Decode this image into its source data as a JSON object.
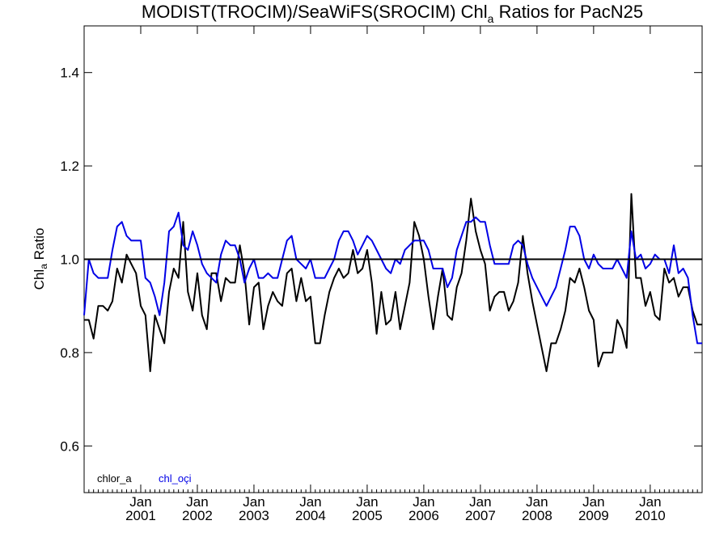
{
  "chart_data": {
    "type": "line",
    "title": "MODIST(TROCIM)/SeaWiFS(SROCIM)  Chl",
    "title_sub": "a",
    "title_tail": " Ratios for PacN25",
    "ylabel": "Chl",
    "ylabel_sub": "a",
    "ylabel_tail": " Ratio",
    "ylim": [
      0.5,
      1.5
    ],
    "xlim": [
      2000.0,
      2010.9167
    ],
    "yticks": [
      0.6,
      0.8,
      1.0,
      1.2,
      1.4
    ],
    "ytick_labels": [
      "0.6",
      "0.8",
      "1.0",
      "1.2",
      "1.4"
    ],
    "xticks": [
      {
        "value": 2001.0,
        "month": "Jan",
        "year": "2001"
      },
      {
        "value": 2002.0,
        "month": "Jan",
        "year": "2002"
      },
      {
        "value": 2003.0,
        "month": "Jan",
        "year": "2003"
      },
      {
        "value": 2004.0,
        "month": "Jan",
        "year": "2004"
      },
      {
        "value": 2005.0,
        "month": "Jan",
        "year": "2005"
      },
      {
        "value": 2006.0,
        "month": "Jan",
        "year": "2006"
      },
      {
        "value": 2007.0,
        "month": "Jan",
        "year": "2007"
      },
      {
        "value": 2008.0,
        "month": "Jan",
        "year": "2008"
      },
      {
        "value": 2009.0,
        "month": "Jan",
        "year": "2009"
      },
      {
        "value": 2010.0,
        "month": "Jan",
        "year": "2010"
      }
    ],
    "reference_line": 1.0,
    "legend_placement": "bottom-left",
    "series": [
      {
        "name": "chlor_a",
        "color": "#000000",
        "x": [
          2000.0,
          2000.083,
          2000.167,
          2000.25,
          2000.333,
          2000.417,
          2000.5,
          2000.583,
          2000.667,
          2000.75,
          2000.833,
          2000.917,
          2001.0,
          2001.083,
          2001.167,
          2001.25,
          2001.333,
          2001.417,
          2001.5,
          2001.583,
          2001.667,
          2001.75,
          2001.833,
          2001.917,
          2002.0,
          2002.083,
          2002.167,
          2002.25,
          2002.333,
          2002.417,
          2002.5,
          2002.583,
          2002.667,
          2002.75,
          2002.833,
          2002.917,
          2003.0,
          2003.083,
          2003.167,
          2003.25,
          2003.333,
          2003.417,
          2003.5,
          2003.583,
          2003.667,
          2003.75,
          2003.833,
          2003.917,
          2004.0,
          2004.083,
          2004.167,
          2004.25,
          2004.333,
          2004.417,
          2004.5,
          2004.583,
          2004.667,
          2004.75,
          2004.833,
          2004.917,
          2005.0,
          2005.083,
          2005.167,
          2005.25,
          2005.333,
          2005.417,
          2005.5,
          2005.583,
          2005.667,
          2005.75,
          2005.833,
          2005.917,
          2006.0,
          2006.083,
          2006.167,
          2006.25,
          2006.333,
          2006.417,
          2006.5,
          2006.583,
          2006.667,
          2006.75,
          2006.833,
          2006.917,
          2007.0,
          2007.083,
          2007.167,
          2007.25,
          2007.333,
          2007.417,
          2007.5,
          2007.583,
          2007.667,
          2007.75,
          2007.833,
          2007.917,
          2008.0,
          2008.083,
          2008.167,
          2008.25,
          2008.333,
          2008.417,
          2008.5,
          2008.583,
          2008.667,
          2008.75,
          2008.833,
          2008.917,
          2009.0,
          2009.083,
          2009.167,
          2009.25,
          2009.333,
          2009.417,
          2009.5,
          2009.583,
          2009.667,
          2009.75,
          2009.833,
          2009.917,
          2010.0,
          2010.083,
          2010.167,
          2010.25,
          2010.333,
          2010.417,
          2010.5,
          2010.583,
          2010.667,
          2010.75,
          2010.833,
          2010.917
        ],
        "values": [
          0.87,
          0.87,
          0.83,
          0.9,
          0.9,
          0.89,
          0.91,
          0.98,
          0.95,
          1.01,
          0.99,
          0.97,
          0.9,
          0.88,
          0.76,
          0.88,
          0.85,
          0.82,
          0.93,
          0.98,
          0.96,
          1.08,
          0.93,
          0.89,
          0.97,
          0.88,
          0.85,
          0.97,
          0.97,
          0.91,
          0.96,
          0.95,
          0.95,
          1.03,
          0.97,
          0.86,
          0.94,
          0.95,
          0.85,
          0.9,
          0.93,
          0.91,
          0.9,
          0.97,
          0.98,
          0.91,
          0.96,
          0.91,
          0.92,
          0.82,
          0.82,
          0.88,
          0.93,
          0.96,
          0.98,
          0.96,
          0.97,
          1.02,
          0.97,
          0.98,
          1.02,
          0.95,
          0.84,
          0.93,
          0.86,
          0.87,
          0.93,
          0.85,
          0.9,
          0.95,
          1.08,
          1.05,
          1.0,
          0.92,
          0.85,
          0.92,
          0.98,
          0.88,
          0.87,
          0.94,
          0.97,
          1.04,
          1.13,
          1.06,
          1.02,
          0.99,
          0.89,
          0.92,
          0.93,
          0.93,
          0.89,
          0.91,
          0.95,
          1.05,
          0.97,
          0.91,
          0.86,
          0.81,
          0.76,
          0.82,
          0.82,
          0.85,
          0.89,
          0.96,
          0.95,
          0.98,
          0.94,
          0.89,
          0.87,
          0.77,
          0.8,
          0.8,
          0.8,
          0.87,
          0.85,
          0.81,
          1.14,
          0.96,
          0.96,
          0.9,
          0.93,
          0.88,
          0.87,
          0.98,
          0.95,
          0.96,
          0.92,
          0.94,
          0.94,
          0.89,
          0.86,
          0.86
        ]
      },
      {
        "name": "chl_oçi",
        "color": "#0000e6",
        "x": [
          2000.0,
          2000.083,
          2000.167,
          2000.25,
          2000.333,
          2000.417,
          2000.5,
          2000.583,
          2000.667,
          2000.75,
          2000.833,
          2000.917,
          2001.0,
          2001.083,
          2001.167,
          2001.25,
          2001.333,
          2001.417,
          2001.5,
          2001.583,
          2001.667,
          2001.75,
          2001.833,
          2001.917,
          2002.0,
          2002.083,
          2002.167,
          2002.25,
          2002.333,
          2002.417,
          2002.5,
          2002.583,
          2002.667,
          2002.75,
          2002.833,
          2002.917,
          2003.0,
          2003.083,
          2003.167,
          2003.25,
          2003.333,
          2003.417,
          2003.5,
          2003.583,
          2003.667,
          2003.75,
          2003.833,
          2003.917,
          2004.0,
          2004.083,
          2004.167,
          2004.25,
          2004.333,
          2004.417,
          2004.5,
          2004.583,
          2004.667,
          2004.75,
          2004.833,
          2004.917,
          2005.0,
          2005.083,
          2005.167,
          2005.25,
          2005.333,
          2005.417,
          2005.5,
          2005.583,
          2005.667,
          2005.75,
          2005.833,
          2005.917,
          2006.0,
          2006.083,
          2006.167,
          2006.25,
          2006.333,
          2006.417,
          2006.5,
          2006.583,
          2006.667,
          2006.75,
          2006.833,
          2006.917,
          2007.0,
          2007.083,
          2007.167,
          2007.25,
          2007.333,
          2007.417,
          2007.5,
          2007.583,
          2007.667,
          2007.75,
          2007.833,
          2007.917,
          2008.0,
          2008.083,
          2008.167,
          2008.25,
          2008.333,
          2008.417,
          2008.5,
          2008.583,
          2008.667,
          2008.75,
          2008.833,
          2008.917,
          2009.0,
          2009.083,
          2009.167,
          2009.25,
          2009.333,
          2009.417,
          2009.5,
          2009.583,
          2009.667,
          2009.75,
          2009.833,
          2009.917,
          2010.0,
          2010.083,
          2010.167,
          2010.25,
          2010.333,
          2010.417,
          2010.5,
          2010.583,
          2010.667,
          2010.75,
          2010.833,
          2010.917
        ],
        "values": [
          0.88,
          1.0,
          0.97,
          0.96,
          0.96,
          0.96,
          1.02,
          1.07,
          1.08,
          1.05,
          1.04,
          1.04,
          1.04,
          0.96,
          0.95,
          0.92,
          0.88,
          0.95,
          1.06,
          1.07,
          1.1,
          1.03,
          1.02,
          1.06,
          1.03,
          0.99,
          0.97,
          0.96,
          0.95,
          1.01,
          1.04,
          1.03,
          1.03,
          1.0,
          0.95,
          0.98,
          1.0,
          0.96,
          0.96,
          0.97,
          0.96,
          0.96,
          1.0,
          1.04,
          1.05,
          1.0,
          0.99,
          0.98,
          1.0,
          0.96,
          0.96,
          0.96,
          0.98,
          1.0,
          1.04,
          1.06,
          1.06,
          1.04,
          1.01,
          1.03,
          1.05,
          1.04,
          1.02,
          1.0,
          0.98,
          0.97,
          1.0,
          0.99,
          1.02,
          1.03,
          1.04,
          1.04,
          1.04,
          1.02,
          0.98,
          0.98,
          0.98,
          0.94,
          0.96,
          1.02,
          1.05,
          1.08,
          1.08,
          1.09,
          1.08,
          1.08,
          1.03,
          0.99,
          0.99,
          0.99,
          0.99,
          1.03,
          1.04,
          1.03,
          0.99,
          0.96,
          0.94,
          0.92,
          0.9,
          0.92,
          0.94,
          0.98,
          1.02,
          1.07,
          1.07,
          1.05,
          1.0,
          0.98,
          1.01,
          0.99,
          0.98,
          0.98,
          0.98,
          1.0,
          0.98,
          0.96,
          1.06,
          1.0,
          1.01,
          0.98,
          0.99,
          1.01,
          1.0,
          1.0,
          0.97,
          1.03,
          0.97,
          0.98,
          0.96,
          0.88,
          0.82,
          0.82
        ]
      }
    ]
  }
}
